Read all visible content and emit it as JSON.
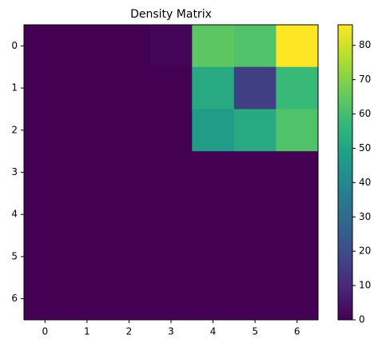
{
  "chart_data": {
    "type": "heatmap",
    "title": "Density Matrix",
    "colormap": "viridis",
    "x": [
      0,
      1,
      2,
      3,
      4,
      5,
      6
    ],
    "y": [
      0,
      1,
      2,
      3,
      4,
      5,
      6
    ],
    "z": [
      [
        0,
        0,
        0,
        1,
        64,
        62,
        86
      ],
      [
        0,
        0,
        0,
        0,
        52,
        16,
        58
      ],
      [
        0,
        0,
        0,
        0,
        47,
        52,
        62
      ],
      [
        0,
        0,
        0,
        0,
        0,
        0,
        0
      ],
      [
        0,
        0,
        0,
        0,
        0,
        0,
        0
      ],
      [
        0,
        0,
        0,
        0,
        0,
        0,
        0
      ],
      [
        0,
        0,
        0,
        0,
        0,
        0,
        0
      ]
    ],
    "xticks": [
      0,
      1,
      2,
      3,
      4,
      5,
      6
    ],
    "yticks": [
      0,
      1,
      2,
      3,
      4,
      5,
      6
    ],
    "zlim": [
      0,
      86
    ],
    "colorbar_ticks": [
      0,
      10,
      20,
      30,
      40,
      50,
      60,
      70,
      80
    ]
  }
}
